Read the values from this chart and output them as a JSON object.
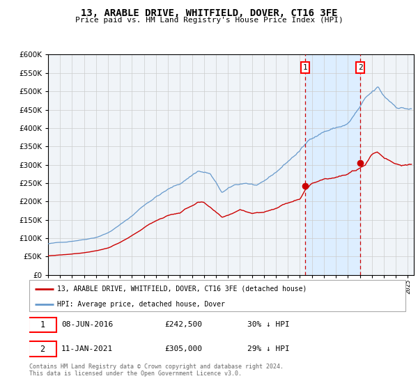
{
  "title": "13, ARABLE DRIVE, WHITFIELD, DOVER, CT16 3FE",
  "subtitle": "Price paid vs. HM Land Registry's House Price Index (HPI)",
  "legend_label_red": "13, ARABLE DRIVE, WHITFIELD, DOVER, CT16 3FE (detached house)",
  "legend_label_blue": "HPI: Average price, detached house, Dover",
  "annotation1_date": "08-JUN-2016",
  "annotation1_price": "£242,500",
  "annotation1_hpi": "30% ↓ HPI",
  "annotation2_date": "11-JAN-2021",
  "annotation2_price": "£305,000",
  "annotation2_hpi": "29% ↓ HPI",
  "footnote": "Contains HM Land Registry data © Crown copyright and database right 2024.\nThis data is licensed under the Open Government Licence v3.0.",
  "sale1_year": 2016.44,
  "sale1_value": 242500,
  "sale2_year": 2021.03,
  "sale2_value": 305000,
  "red_color": "#cc0000",
  "blue_color": "#6699cc",
  "shade_color": "#ddeeff",
  "grid_color": "#cccccc",
  "plot_bg": "#f0f4f8",
  "bg_color": "#ffffff",
  "ylim": [
    0,
    600000
  ],
  "xlim_start": 1995,
  "xlim_end": 2025.5
}
